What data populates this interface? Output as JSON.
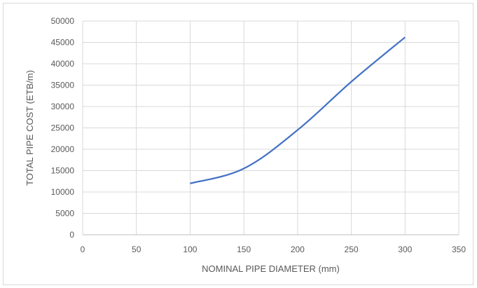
{
  "chart_data": {
    "type": "line",
    "title": "",
    "xlabel": "NOMINAL PIPE DIAMETER (mm)",
    "ylabel": "TOTAL PIPE COST (ETB/m)",
    "xlim": [
      0,
      350
    ],
    "ylim": [
      0,
      50000
    ],
    "x_ticks": [
      "0",
      "50",
      "100",
      "150",
      "200",
      "250",
      "300",
      "350"
    ],
    "y_ticks": [
      "0",
      "5000",
      "10000",
      "15000",
      "20000",
      "25000",
      "30000",
      "35000",
      "40000",
      "45000",
      "50000"
    ],
    "grid": true,
    "legend": "none",
    "line_color": "#4472c4",
    "series": [
      {
        "x": [
          100,
          150,
          200,
          250,
          300
        ],
        "values": [
          12000,
          15500,
          24500,
          35800,
          46200
        ]
      }
    ]
  }
}
